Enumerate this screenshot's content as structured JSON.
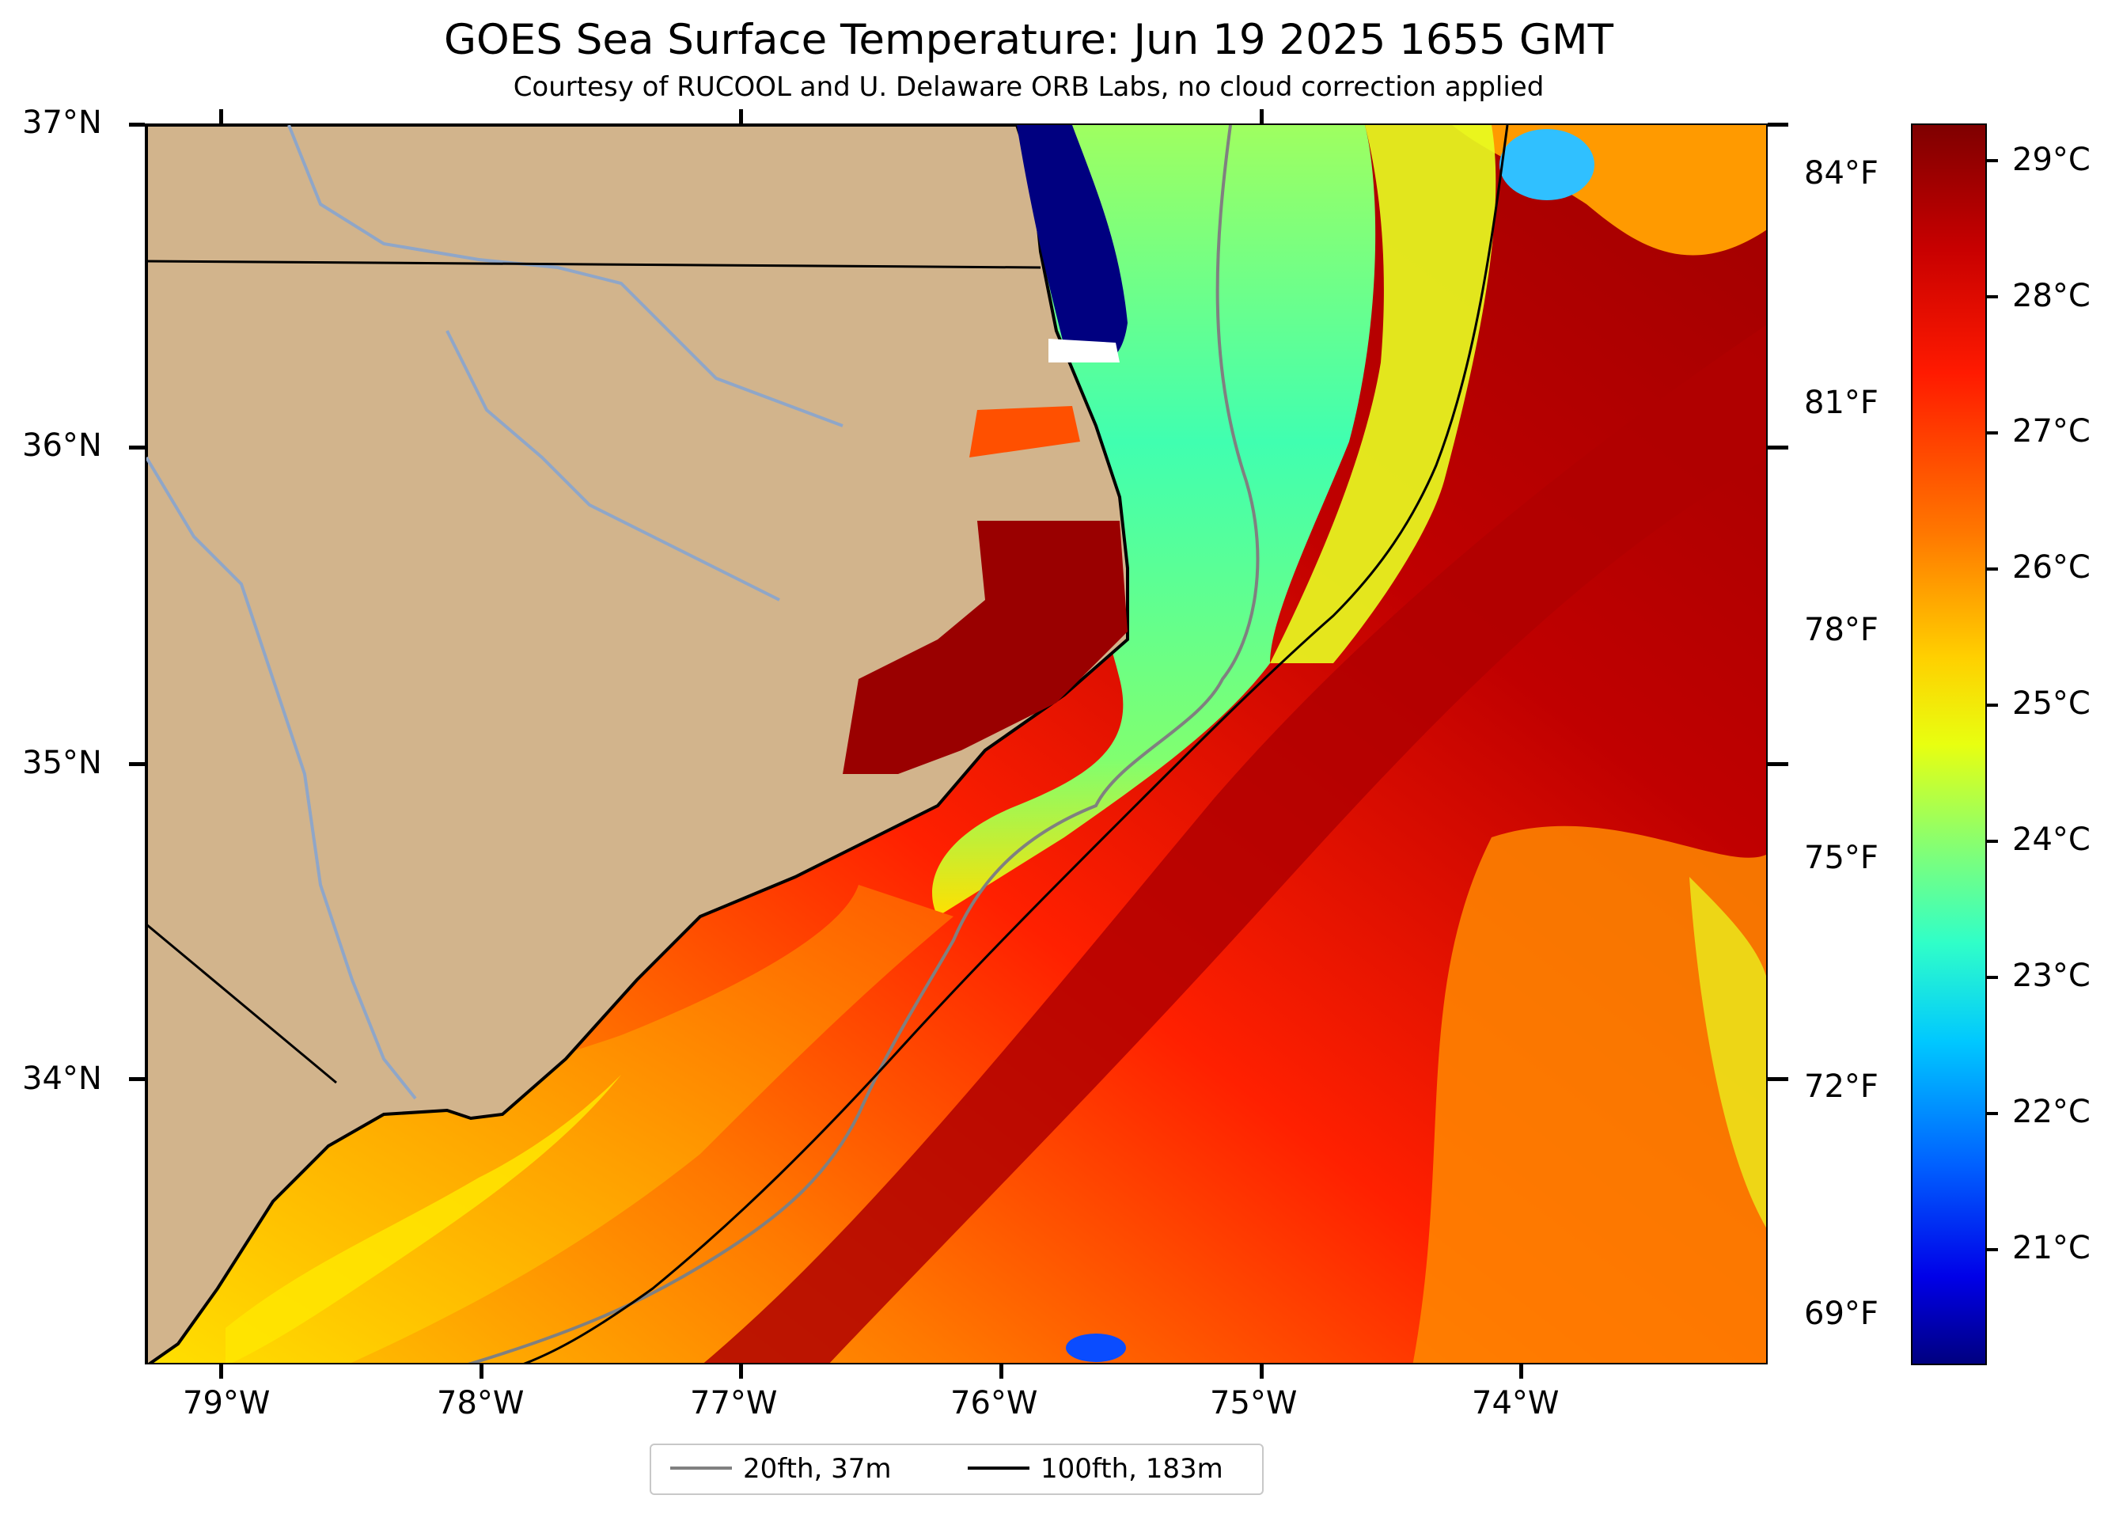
{
  "title": "GOES Sea Surface Temperature: Jun 19 2025 1655 GMT",
  "subtitle": "Courtesy of RUCOOL and U. Delaware ORB Labs, no cloud correction applied",
  "map": {
    "lat_labels": [
      "37°N",
      "36°N",
      "35°N",
      "34°N"
    ],
    "lon_labels": [
      "79°W",
      "78°W",
      "77°W",
      "76°W",
      "75°W",
      "74°W"
    ],
    "fahrenheit_labels": [
      "84°F",
      "81°F",
      "78°F",
      "75°F",
      "72°F",
      "69°F"
    ],
    "colors": {
      "land": "#d2b48c",
      "river": "#8fa6c8",
      "isobath_20": "#808080",
      "isobath_100": "#000000"
    }
  },
  "colorbar": {
    "labels": [
      "29°C",
      "28°C",
      "27°C",
      "26°C",
      "25°C",
      "24°C",
      "23°C",
      "22°C",
      "21°C"
    ],
    "colormap": "jet"
  },
  "legend": {
    "items": [
      {
        "label": "20fth, 37m",
        "color": "#808080"
      },
      {
        "label": "100fth, 183m",
        "color": "#000000"
      }
    ]
  }
}
